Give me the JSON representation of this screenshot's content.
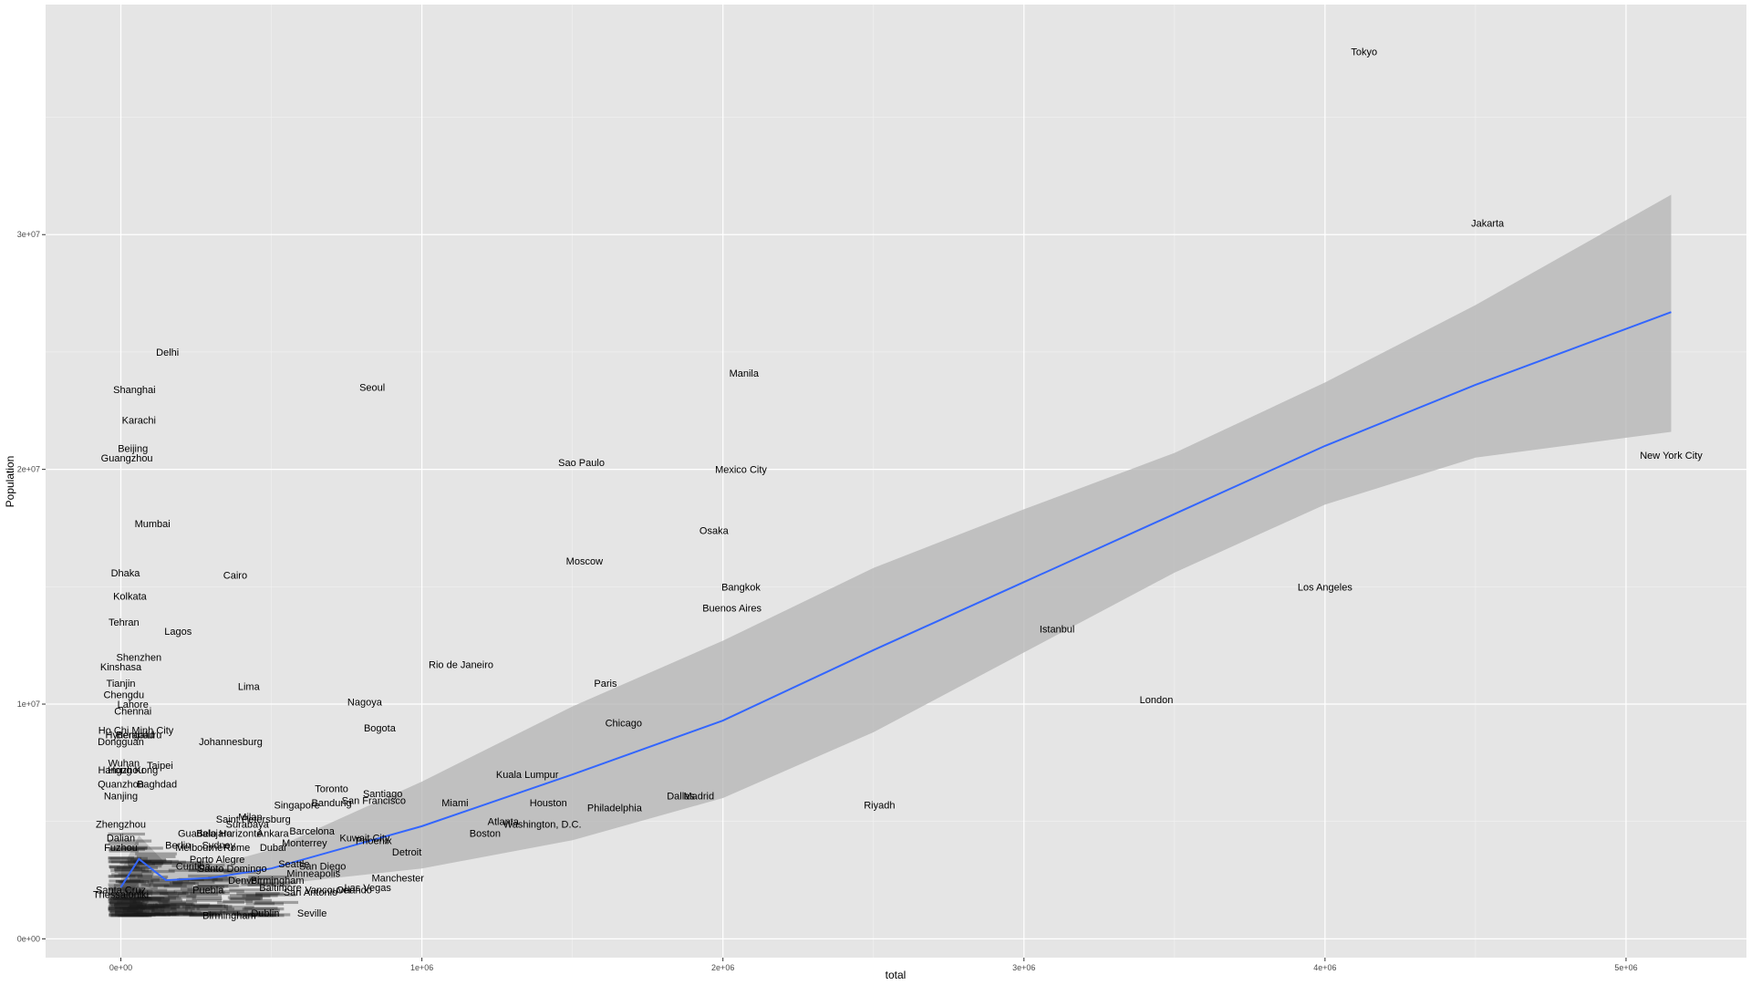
{
  "chart_data": {
    "type": "scatter",
    "title": "",
    "xlabel": "total",
    "ylabel": "Population",
    "xlim": [
      -250000,
      5400000
    ],
    "ylim": [
      -800000,
      39800000
    ],
    "x_ticks": [
      {
        "value": 0,
        "label": "0e+00"
      },
      {
        "value": 1000000,
        "label": "1e+06"
      },
      {
        "value": 2000000,
        "label": "2e+06"
      },
      {
        "value": 3000000,
        "label": "3e+06"
      },
      {
        "value": 4000000,
        "label": "4e+06"
      },
      {
        "value": 5000000,
        "label": "5e+06"
      }
    ],
    "y_ticks": [
      {
        "value": 0,
        "label": "0e+00"
      },
      {
        "value": 10000000,
        "label": "1e+07"
      },
      {
        "value": 20000000,
        "label": "2e+07"
      },
      {
        "value": 30000000,
        "label": "3e+07"
      }
    ],
    "grid": true,
    "colors": {
      "panel": "#e5e5e5",
      "grid_major": "#ffffff",
      "smooth_line": "#3366ff",
      "ribbon": "#b3b3b3"
    },
    "labels": [
      {
        "name": "Tokyo",
        "x": 4130000,
        "y": 37800000
      },
      {
        "name": "Jakarta",
        "x": 4540000,
        "y": 30500000
      },
      {
        "name": "Delhi",
        "x": 155000,
        "y": 25000000
      },
      {
        "name": "Manila",
        "x": 2070000,
        "y": 24100000
      },
      {
        "name": "Shanghai",
        "x": 45000,
        "y": 23400000
      },
      {
        "name": "Seoul",
        "x": 835000,
        "y": 23500000
      },
      {
        "name": "Karachi",
        "x": 60000,
        "y": 22100000
      },
      {
        "name": "Beijing",
        "x": 40000,
        "y": 20900000
      },
      {
        "name": "Guangzhou",
        "x": 20000,
        "y": 20500000
      },
      {
        "name": "Sao Paulo",
        "x": 1530000,
        "y": 20300000
      },
      {
        "name": "Mexico City",
        "x": 2060000,
        "y": 20000000
      },
      {
        "name": "New York City",
        "x": 5150000,
        "y": 20600000
      },
      {
        "name": "Mumbai",
        "x": 105000,
        "y": 17700000
      },
      {
        "name": "Osaka",
        "x": 1970000,
        "y": 17400000
      },
      {
        "name": "Moscow",
        "x": 1540000,
        "y": 16100000
      },
      {
        "name": "Dhaka",
        "x": 15000,
        "y": 15600000
      },
      {
        "name": "Cairo",
        "x": 380000,
        "y": 15500000
      },
      {
        "name": "Bangkok",
        "x": 2060000,
        "y": 15000000
      },
      {
        "name": "Los Angeles",
        "x": 4000000,
        "y": 15000000
      },
      {
        "name": "Kolkata",
        "x": 30000,
        "y": 14600000
      },
      {
        "name": "Buenos Aires",
        "x": 2030000,
        "y": 14100000
      },
      {
        "name": "Tehran",
        "x": 10000,
        "y": 13500000
      },
      {
        "name": "Istanbul",
        "x": 3110000,
        "y": 13200000
      },
      {
        "name": "Lagos",
        "x": 190000,
        "y": 13100000
      },
      {
        "name": "Shenzhen",
        "x": 60000,
        "y": 12000000
      },
      {
        "name": "Rio de Janeiro",
        "x": 1130000,
        "y": 11700000
      },
      {
        "name": "Kinshasa",
        "x": 0,
        "y": 11600000
      },
      {
        "name": "Tianjin",
        "x": 0,
        "y": 10900000
      },
      {
        "name": "Paris",
        "x": 1610000,
        "y": 10900000
      },
      {
        "name": "Lima",
        "x": 425000,
        "y": 10750000
      },
      {
        "name": "Chengdu",
        "x": 10000,
        "y": 10400000
      },
      {
        "name": "London",
        "x": 3440000,
        "y": 10200000
      },
      {
        "name": "Nagoya",
        "x": 810000,
        "y": 10100000
      },
      {
        "name": "Lahore",
        "x": 40000,
        "y": 10000000
      },
      {
        "name": "Chennai",
        "x": 40000,
        "y": 9700000
      },
      {
        "name": "Chicago",
        "x": 1670000,
        "y": 9200000
      },
      {
        "name": "Bogota",
        "x": 860000,
        "y": 9000000
      },
      {
        "name": "Ho Chi Minh City",
        "x": 50000,
        "y": 8900000
      },
      {
        "name": "Hyderabad",
        "x": 30000,
        "y": 8700000
      },
      {
        "name": "Bengaluru",
        "x": 60000,
        "y": 8700000
      },
      {
        "name": "Dongguan",
        "x": 0,
        "y": 8400000
      },
      {
        "name": "Johannesburg",
        "x": 365000,
        "y": 8400000
      },
      {
        "name": "Wuhan",
        "x": 10000,
        "y": 7500000
      },
      {
        "name": "Taipei",
        "x": 130000,
        "y": 7400000
      },
      {
        "name": "Hangzhou",
        "x": 0,
        "y": 7200000
      },
      {
        "name": "Hong Kong",
        "x": 40000,
        "y": 7200000
      },
      {
        "name": "Kuala Lumpur",
        "x": 1350000,
        "y": 7000000
      },
      {
        "name": "Quanzhou",
        "x": 0,
        "y": 6600000
      },
      {
        "name": "Baghdad",
        "x": 120000,
        "y": 6600000
      },
      {
        "name": "Toronto",
        "x": 700000,
        "y": 6400000
      },
      {
        "name": "Dallas",
        "x": 1860000,
        "y": 6100000
      },
      {
        "name": "Madrid",
        "x": 1920000,
        "y": 6100000
      },
      {
        "name": "Santiago",
        "x": 870000,
        "y": 6200000
      },
      {
        "name": "Nanjing",
        "x": 0,
        "y": 6100000
      },
      {
        "name": "San Francisco",
        "x": 840000,
        "y": 5900000
      },
      {
        "name": "Miami",
        "x": 1110000,
        "y": 5800000
      },
      {
        "name": "Houston",
        "x": 1420000,
        "y": 5800000
      },
      {
        "name": "Riyadh",
        "x": 2520000,
        "y": 5700000
      },
      {
        "name": "Bandung",
        "x": 700000,
        "y": 5800000
      },
      {
        "name": "Singapore",
        "x": 585000,
        "y": 5700000
      },
      {
        "name": "Philadelphia",
        "x": 1640000,
        "y": 5600000
      },
      {
        "name": "Milan",
        "x": 430000,
        "y": 5200000
      },
      {
        "name": "Saint Petersburg",
        "x": 440000,
        "y": 5100000
      },
      {
        "name": "Atlanta",
        "x": 1270000,
        "y": 5000000
      },
      {
        "name": "Surabaya",
        "x": 420000,
        "y": 4900000
      },
      {
        "name": "Washington, D.C.",
        "x": 1400000,
        "y": 4900000
      },
      {
        "name": "Barcelona",
        "x": 635000,
        "y": 4600000
      },
      {
        "name": "Guadalajara",
        "x": 280000,
        "y": 4500000
      },
      {
        "name": "Belo Horizonte",
        "x": 360000,
        "y": 4500000
      },
      {
        "name": "Ankara",
        "x": 505000,
        "y": 4500000
      },
      {
        "name": "Boston",
        "x": 1210000,
        "y": 4500000
      },
      {
        "name": "Kuwait City",
        "x": 810000,
        "y": 4300000
      },
      {
        "name": "Phoenix",
        "x": 840000,
        "y": 4200000
      },
      {
        "name": "Monterrey",
        "x": 610000,
        "y": 4100000
      },
      {
        "name": "Sydney",
        "x": 325000,
        "y": 4000000
      },
      {
        "name": "Melbourne",
        "x": 260000,
        "y": 3900000
      },
      {
        "name": "Rome",
        "x": 385000,
        "y": 3900000
      },
      {
        "name": "Dubai",
        "x": 505000,
        "y": 3900000
      },
      {
        "name": "Detroit",
        "x": 950000,
        "y": 3700000
      },
      {
        "name": "Berlin",
        "x": 190000,
        "y": 4000000
      },
      {
        "name": "Porto Alegre",
        "x": 320000,
        "y": 3400000
      },
      {
        "name": "Curitiba",
        "x": 240000,
        "y": 3100000
      },
      {
        "name": "Santo Domingo",
        "x": 370000,
        "y": 3000000
      },
      {
        "name": "Seattle",
        "x": 575000,
        "y": 3200000
      },
      {
        "name": "San Diego",
        "x": 670000,
        "y": 3100000
      },
      {
        "name": "Minneapolis",
        "x": 640000,
        "y": 2800000
      },
      {
        "name": "Manchester",
        "x": 920000,
        "y": 2600000
      },
      {
        "name": "Denver",
        "x": 410000,
        "y": 2500000
      },
      {
        "name": "Birmingham",
        "x": 520000,
        "y": 2500000
      },
      {
        "name": "Baltimore",
        "x": 530000,
        "y": 2200000
      },
      {
        "name": "Las Vegas",
        "x": 820000,
        "y": 2200000
      },
      {
        "name": "Vancouver",
        "x": 690000,
        "y": 2100000
      },
      {
        "name": "Orlando",
        "x": 775000,
        "y": 2100000
      },
      {
        "name": "San Antonio",
        "x": 630000,
        "y": 2000000
      },
      {
        "name": "Puebla",
        "x": 290000,
        "y": 2100000
      },
      {
        "name": "Dublin",
        "x": 480000,
        "y": 1100000
      },
      {
        "name": "Seville",
        "x": 635000,
        "y": 1100000
      },
      {
        "name": "Birmingham",
        "x": 360000,
        "y": 1000000
      },
      {
        "name": "Zhengzhou",
        "x": 0,
        "y": 4900000
      },
      {
        "name": "Dalian",
        "x": 0,
        "y": 4300000
      },
      {
        "name": "Fuzhou",
        "x": 0,
        "y": 3900000
      },
      {
        "name": "Santa Cruz",
        "x": 0,
        "y": 2100000
      },
      {
        "name": "Thessaloniki",
        "x": 0,
        "y": 1900000
      }
    ],
    "smooth_curve": [
      {
        "x": 0,
        "y": 2200000,
        "lo": 1500000,
        "hi": 2900000
      },
      {
        "x": 60000,
        "y": 3400000,
        "lo": 2400000,
        "hi": 4400000
      },
      {
        "x": 150000,
        "y": 2500000,
        "lo": 1800000,
        "hi": 3200000
      },
      {
        "x": 300000,
        "y": 2600000,
        "lo": 2100000,
        "hi": 3100000
      },
      {
        "x": 500000,
        "y": 3000000,
        "lo": 2300000,
        "hi": 3800000
      },
      {
        "x": 1000000,
        "y": 4800000,
        "lo": 3000000,
        "hi": 6700000
      },
      {
        "x": 1500000,
        "y": 7000000,
        "lo": 4200000,
        "hi": 9900000
      },
      {
        "x": 2000000,
        "y": 9300000,
        "lo": 6000000,
        "hi": 12700000
      },
      {
        "x": 2500000,
        "y": 12300000,
        "lo": 8800000,
        "hi": 15800000
      },
      {
        "x": 3000000,
        "y": 15200000,
        "lo": 12200000,
        "hi": 18300000
      },
      {
        "x": 3500000,
        "y": 18100000,
        "lo": 15600000,
        "hi": 20700000
      },
      {
        "x": 4000000,
        "y": 21000000,
        "lo": 18500000,
        "hi": 23700000
      },
      {
        "x": 4500000,
        "y": 23600000,
        "lo": 20500000,
        "hi": 27000000
      },
      {
        "x": 5150000,
        "y": 26700000,
        "lo": 21600000,
        "hi": 31700000
      }
    ],
    "dense_cluster": {
      "x_range": [
        0,
        500000
      ],
      "y_range": [
        900000,
        4500000
      ],
      "count": 260
    }
  }
}
